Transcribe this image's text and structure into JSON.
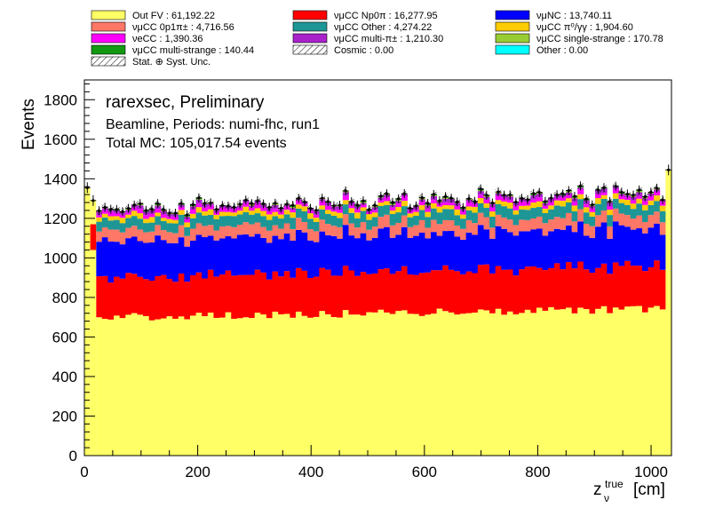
{
  "chart_data": {
    "type": "stacked-histogram",
    "xlabel_main": "z",
    "xlabel_sub": "ν",
    "xlabel_sup": "true",
    "xlabel_unit": "[cm]",
    "ylabel": "Events",
    "xlim": [
      0,
      1036
    ],
    "ylim": [
      0,
      1900
    ],
    "x_ticks": [
      0,
      200,
      400,
      600,
      800,
      1000
    ],
    "y_ticks": [
      0,
      200,
      400,
      600,
      800,
      1000,
      1200,
      1400,
      1600,
      1800
    ],
    "annotations": [
      "rarexsec, Preliminary",
      "Beamline, Periods: numi-fhc, run1",
      "Total MC: 105,017.54 events"
    ],
    "legend": {
      "placement": "top",
      "entries": [
        {
          "label": "Out FV : 61,192.22",
          "color": "#ffff66"
        },
        {
          "label": "νμCC Np0π : 16,277.95",
          "color": "#ff0000"
        },
        {
          "label": "νμNC : 13,740.11",
          "color": "#0000ff"
        },
        {
          "label": "νμCC 0p1π± : 4,716.56",
          "color": "#ff7766"
        },
        {
          "label": "νμCC Other : 4,274.22",
          "color": "#1e9696"
        },
        {
          "label": "νμCC π⁰/γγ : 1,904.60",
          "color": "#ffcc00"
        },
        {
          "label": "νeCC : 1,390.36",
          "color": "#ff00ff"
        },
        {
          "label": "νμCC multi-π± : 1,210.30",
          "color": "#aa22cc"
        },
        {
          "label": "νμCC single-strange : 170.78",
          "color": "#99cc33"
        },
        {
          "label": "νμCC multi-strange : 140.44",
          "color": "#119911"
        },
        {
          "label": "Cosmic : 0.00",
          "color": "#ffffff",
          "hatch": true
        },
        {
          "label": "Other : 0.00",
          "color": "#00ffff"
        },
        {
          "label": "Stat. ⊕ Syst. Unc.",
          "color": "#ffffff",
          "hatch": true
        }
      ]
    },
    "bins": {
      "width": 10.36,
      "count": 100
    },
    "edge_bins": [
      {
        "x0": 0,
        "x1": 10.36,
        "total": 1355
      },
      {
        "x0": 10.36,
        "x1": 20.72,
        "total": 1290,
        "red_band": [
          1040,
          1170
        ]
      },
      {
        "x0": 1025.64,
        "x1": 1036,
        "total": 1445
      }
    ],
    "fv_region": [
      20.72,
      1025.64
    ],
    "series": [
      {
        "name": "Out FV",
        "color": "#ffff66",
        "base_start": 700,
        "base_end": 740
      },
      {
        "name": "νμCC Np0π",
        "color": "#ff0000",
        "base_start": 205,
        "base_end": 220
      },
      {
        "name": "νμNC",
        "color": "#0000ff",
        "base_start": 190,
        "base_end": 190
      },
      {
        "name": "νμCC 0p1π±",
        "color": "#ff7766",
        "base_start": 55,
        "base_end": 60
      },
      {
        "name": "νμCC Other",
        "color": "#1e9696",
        "base_start": 50,
        "base_end": 55
      },
      {
        "name": "νμCC π⁰/γγ",
        "color": "#ffcc00",
        "base_start": 22,
        "base_end": 25
      },
      {
        "name": "νeCC",
        "color": "#ff00ff",
        "base_start": 16,
        "base_end": 18
      },
      {
        "name": "νμCC multi-π±",
        "color": "#aa22cc",
        "base_start": 14,
        "base_end": 16
      },
      {
        "name": "νμCC single-strange",
        "color": "#99cc33",
        "base_start": 2,
        "base_end": 2
      },
      {
        "name": "νμCC multi-strange",
        "color": "#119911",
        "base_start": 2,
        "base_end": 2
      }
    ]
  }
}
